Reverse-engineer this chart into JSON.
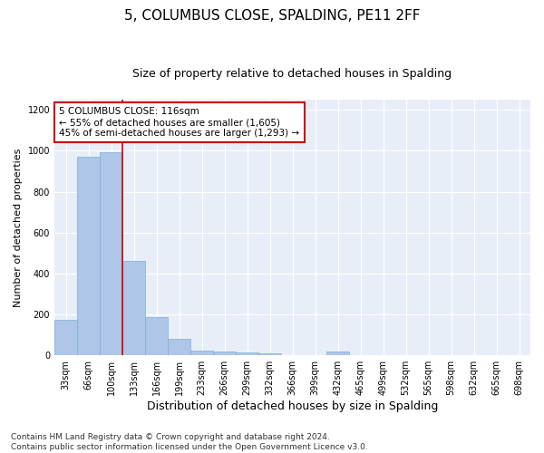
{
  "title": "5, COLUMBUS CLOSE, SPALDING, PE11 2FF",
  "subtitle": "Size of property relative to detached houses in Spalding",
  "xlabel": "Distribution of detached houses by size in Spalding",
  "ylabel": "Number of detached properties",
  "categories": [
    "33sqm",
    "66sqm",
    "100sqm",
    "133sqm",
    "166sqm",
    "199sqm",
    "233sqm",
    "266sqm",
    "299sqm",
    "332sqm",
    "366sqm",
    "399sqm",
    "432sqm",
    "465sqm",
    "499sqm",
    "532sqm",
    "565sqm",
    "598sqm",
    "632sqm",
    "665sqm",
    "698sqm"
  ],
  "values": [
    175,
    970,
    995,
    460,
    185,
    80,
    25,
    17,
    12,
    8,
    0,
    0,
    20,
    0,
    0,
    0,
    0,
    0,
    0,
    0,
    0
  ],
  "bar_color": "#aec6e8",
  "bar_edgecolor": "#7bafd4",
  "vline_x": 2.5,
  "vline_color": "#cc0000",
  "annotation_text": "5 COLUMBUS CLOSE: 116sqm\n← 55% of detached houses are smaller (1,605)\n45% of semi-detached houses are larger (1,293) →",
  "annotation_box_edgecolor": "#cc0000",
  "annotation_box_facecolor": "#ffffff",
  "ylim": [
    0,
    1250
  ],
  "yticks": [
    0,
    200,
    400,
    600,
    800,
    1000,
    1200
  ],
  "footer": "Contains HM Land Registry data © Crown copyright and database right 2024.\nContains public sector information licensed under the Open Government Licence v3.0.",
  "bg_color": "#e8eef7",
  "title_fontsize": 11,
  "subtitle_fontsize": 9,
  "xlabel_fontsize": 9,
  "ylabel_fontsize": 8,
  "tick_fontsize": 7,
  "footer_fontsize": 6.5,
  "annotation_fontsize": 7.5
}
